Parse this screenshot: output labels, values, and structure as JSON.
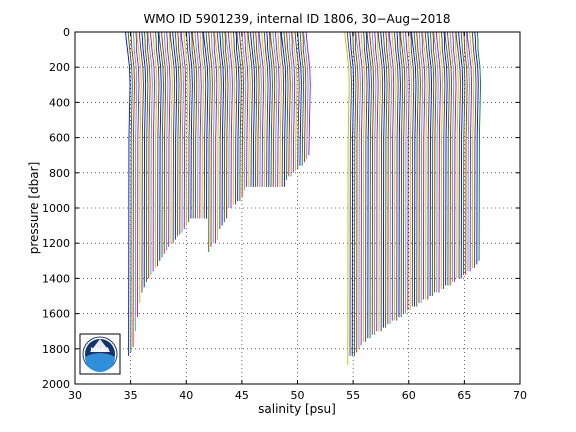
{
  "chart_data": {
    "type": "line",
    "title": "WMO ID 5901239, internal ID 1806, 30−Aug−2018",
    "xlabel": "salinity [psu]",
    "ylabel": "pressure [dbar]",
    "xlim": [
      30,
      70
    ],
    "ylim": [
      0,
      2000
    ],
    "y_reversed": true,
    "grid": true,
    "xticks": [
      30,
      35,
      40,
      45,
      50,
      55,
      60,
      65,
      70
    ],
    "yticks": [
      0,
      200,
      400,
      600,
      800,
      1000,
      1200,
      1400,
      1600,
      1800,
      2000
    ],
    "profile_spacing": 0.2,
    "series_colors": [
      "#0000ff",
      "#008000",
      "#ff0000",
      "#00bfbf",
      "#bf00bf",
      "#bfbf00",
      "#404040"
    ],
    "profile_groups": [
      {
        "count": 82,
        "start": 34.9,
        "deep_salinity": 34.92,
        "shallow_salinity": 34.7,
        "max_depth": [
          1840,
          1820,
          1790,
          1700,
          1620,
          1540,
          1480,
          1450,
          1420,
          1400,
          1380,
          1360,
          1340,
          1330,
          1300,
          1280,
          1260,
          1240,
          1220,
          1200,
          1200,
          1180,
          1160,
          1150,
          1140,
          1120,
          1100,
          1080,
          1060,
          1060,
          1060,
          1060,
          1060,
          1060,
          1060,
          1060,
          1250,
          1220,
          1200,
          1200,
          1180,
          1120,
          1100,
          1080,
          1060,
          1000,
          1000,
          980,
          980,
          960,
          960,
          940,
          900,
          880,
          880,
          880,
          880,
          880,
          880,
          880,
          880,
          880,
          880,
          880,
          880,
          880,
          880,
          880,
          880,
          880,
          880,
          840,
          820,
          820,
          800,
          790,
          780,
          760,
          760,
          740,
          720,
          700
        ]
      },
      {
        "count": 60,
        "start": 54.6,
        "deep_salinity": 34.92,
        "shallow_salinity": 34.7,
        "max_depth": [
          1890,
          1840,
          1840,
          1840,
          1820,
          1800,
          1780,
          1760,
          1760,
          1740,
          1740,
          1720,
          1720,
          1700,
          1700,
          1700,
          1680,
          1680,
          1660,
          1660,
          1640,
          1640,
          1640,
          1620,
          1620,
          1600,
          1600,
          1580,
          1580,
          1560,
          1560,
          1560,
          1540,
          1540,
          1520,
          1520,
          1520,
          1500,
          1500,
          1480,
          1480,
          1480,
          1460,
          1460,
          1440,
          1440,
          1440,
          1420,
          1420,
          1400,
          1400,
          1400,
          1380,
          1380,
          1360,
          1360,
          1340,
          1340,
          1320,
          1300
        ]
      }
    ]
  },
  "logo": {
    "text": "NOAA"
  }
}
